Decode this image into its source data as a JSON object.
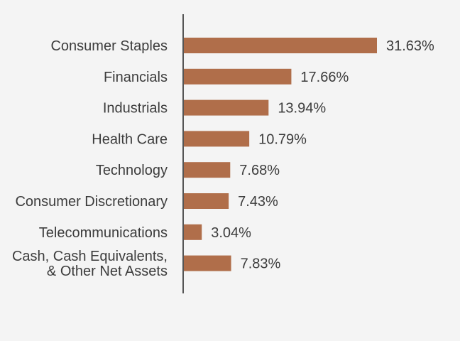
{
  "chart_data": {
    "type": "bar",
    "orientation": "horizontal",
    "categories": [
      "Consumer Staples",
      "Financials",
      "Industrials",
      "Health Care",
      "Technology",
      "Consumer Discretionary",
      "Telecommunications",
      "Cash, Cash Equivalents,\n& Other Net Assets"
    ],
    "values": [
      31.63,
      17.66,
      13.94,
      10.79,
      7.68,
      7.43,
      3.04,
      7.83
    ],
    "value_labels": [
      "31.63%",
      "17.66%",
      "13.94%",
      "10.79%",
      "7.68%",
      "7.43%",
      "3.04%",
      "7.83%"
    ],
    "title": "",
    "xlabel": "",
    "ylabel": "",
    "xlim": [
      0,
      37
    ],
    "grid": false,
    "legend": "none",
    "bar_color": "#b06e4a",
    "axis_color": "#555555"
  }
}
